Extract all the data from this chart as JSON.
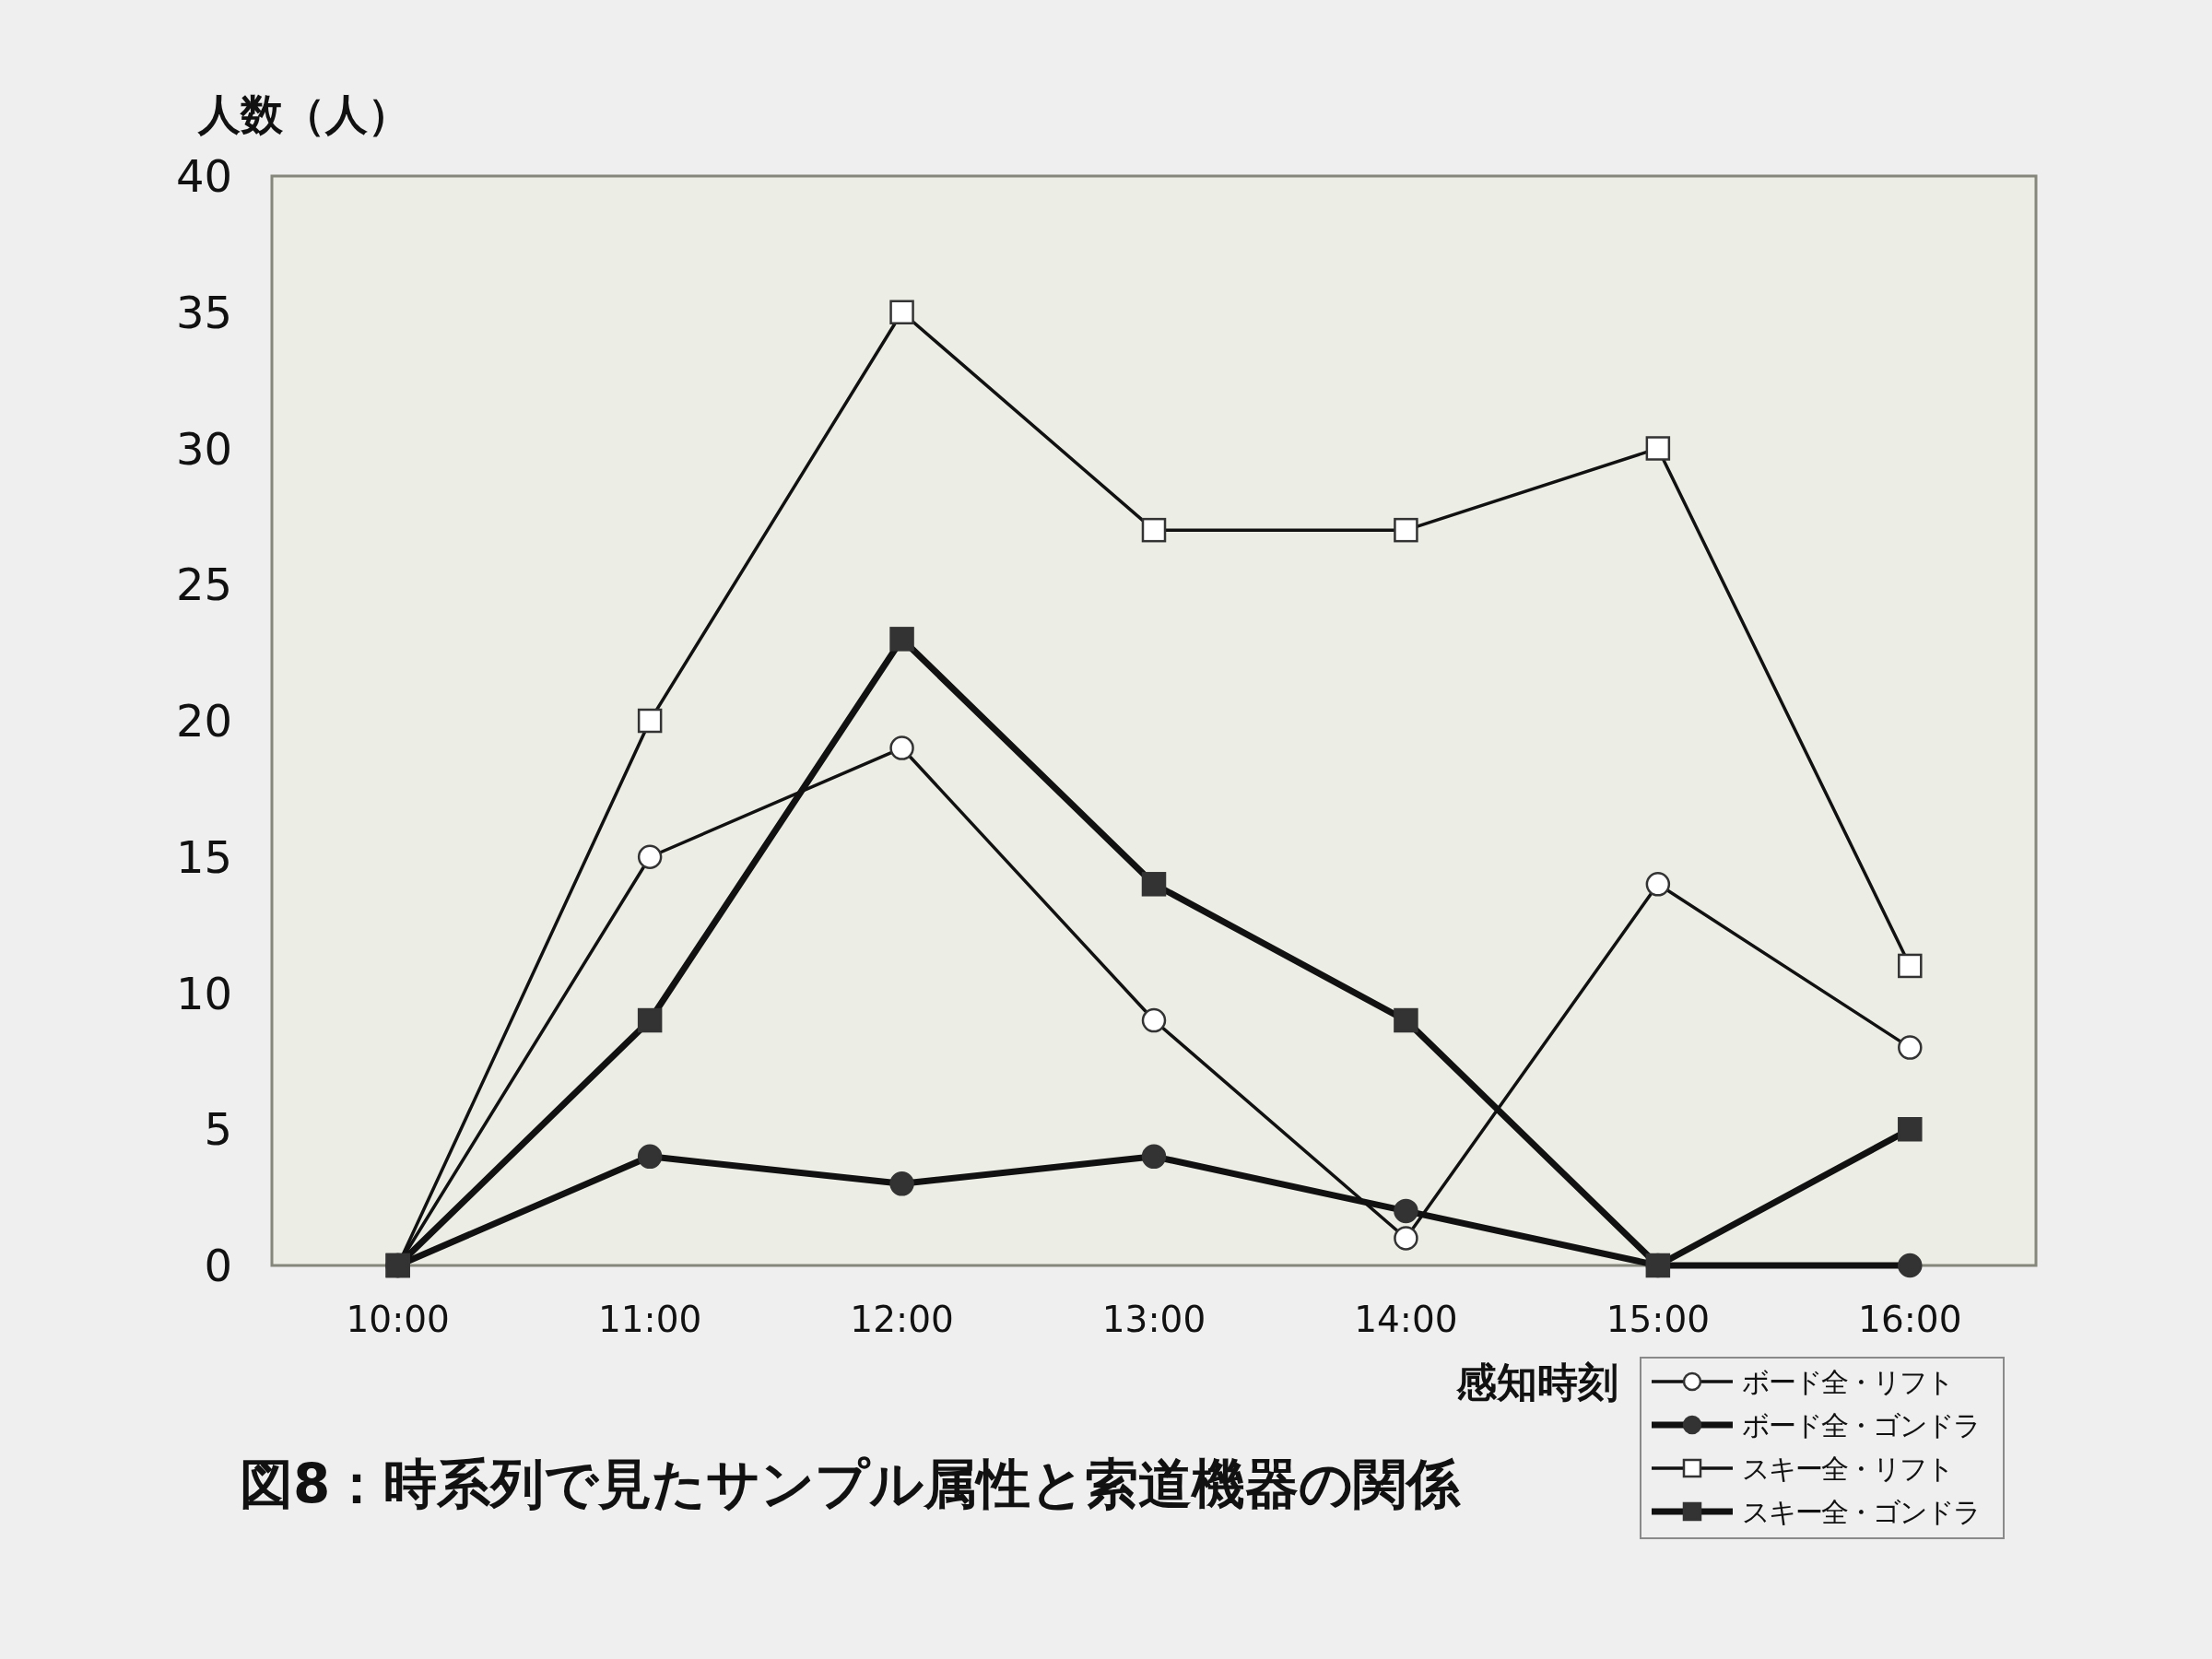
{
  "chart_data": {
    "type": "line",
    "title": "図8：時系列で見たサンプル属性と索道機器の関係",
    "xlabel": "感知時刻",
    "ylabel": "人数（人）",
    "categories": [
      "10:00",
      "11:00",
      "12:00",
      "13:00",
      "14:00",
      "15:00",
      "16:00"
    ],
    "ylim": [
      0,
      40
    ],
    "yticks": [
      0,
      5,
      10,
      15,
      20,
      25,
      30,
      35,
      40
    ],
    "legend": "bottom right",
    "grid": false,
    "line_style": "solid",
    "series": [
      {
        "name": "ボード全・リフト",
        "color": "#111111",
        "marker": "circle",
        "values": [
          0,
          15,
          19,
          9,
          1,
          14,
          8
        ]
      },
      {
        "name": "ボード全・ゴンドラ",
        "color": "#111111",
        "marker": "circle",
        "values": [
          0,
          4,
          3,
          4,
          2,
          0,
          0
        ]
      },
      {
        "name": "スキー全・リフト",
        "color": "#111111",
        "marker": "square",
        "values": [
          0,
          20,
          35,
          27,
          27,
          30,
          11
        ]
      },
      {
        "name": "スキー全・ゴンドラ",
        "color": "#111111",
        "marker": "square",
        "values": [
          0,
          9,
          23,
          14,
          9,
          0,
          5
        ]
      }
    ]
  }
}
